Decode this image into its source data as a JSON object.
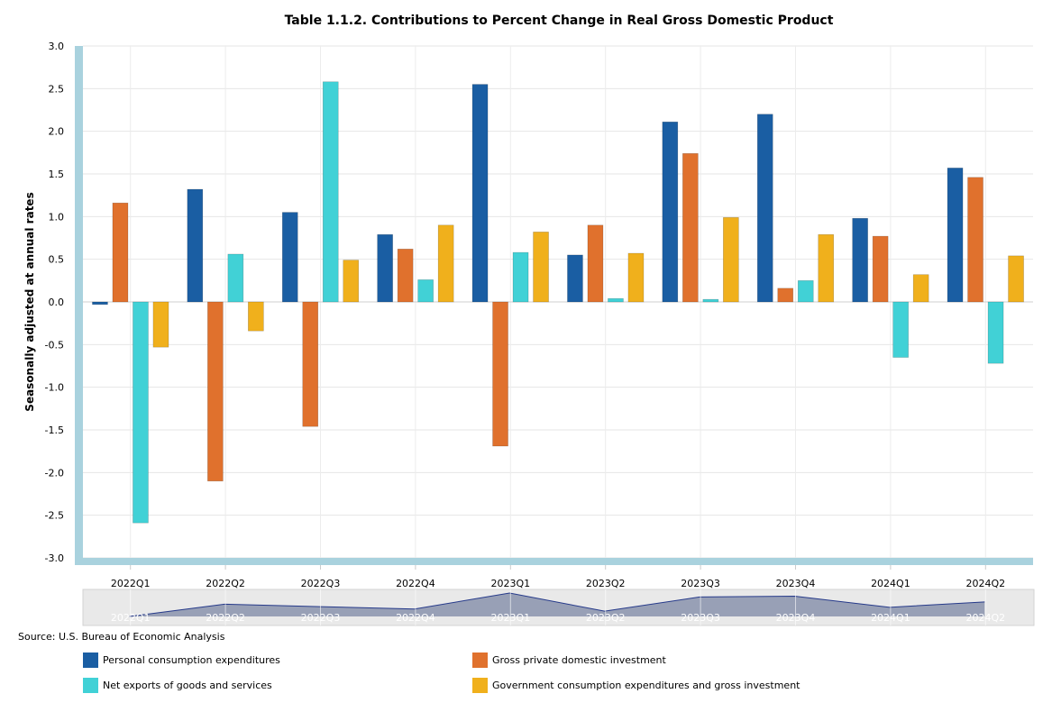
{
  "chart_data": {
    "type": "bar",
    "title": "Table 1.1.2. Contributions to Percent Change in Real Gross Domestic Product",
    "ylabel": "Seasonally adjusted at annual rates",
    "xlabel": "",
    "ylim": [
      -3.0,
      3.0
    ],
    "yticks": [
      "3.0",
      "2.5",
      "2.0",
      "1.5",
      "1.0",
      "0.5",
      "0.0",
      "-0.5",
      "-1.0",
      "-1.5",
      "-2.0",
      "-2.5",
      "-3.0"
    ],
    "ytick_values": [
      3.0,
      2.5,
      2.0,
      1.5,
      1.0,
      0.5,
      0.0,
      -0.5,
      -1.0,
      -1.5,
      -2.0,
      -2.5,
      -3.0
    ],
    "categories": [
      "2022Q1",
      "2022Q2",
      "2022Q3",
      "2022Q4",
      "2023Q1",
      "2023Q2",
      "2023Q3",
      "2023Q4",
      "2024Q1",
      "2024Q2"
    ],
    "series": [
      {
        "name": "Personal consumption expenditures",
        "color": "#1a5ea3",
        "values": [
          -0.03,
          1.32,
          1.05,
          0.79,
          2.55,
          0.55,
          2.11,
          2.2,
          0.98,
          1.57
        ]
      },
      {
        "name": "Gross private domestic investment",
        "color": "#e0712d",
        "values": [
          1.16,
          -2.1,
          -1.46,
          0.62,
          -1.69,
          0.9,
          1.74,
          0.16,
          0.77,
          1.46
        ]
      },
      {
        "name": "Net exports of goods and services",
        "color": "#41d1d6",
        "values": [
          -2.59,
          0.56,
          2.58,
          0.26,
          0.58,
          0.04,
          0.03,
          0.25,
          -0.65,
          -0.72
        ]
      },
      {
        "name": "Government consumption expenditures and gross investment",
        "color": "#f0b01c",
        "values": [
          -0.53,
          -0.34,
          0.49,
          0.9,
          0.82,
          0.57,
          0.99,
          0.79,
          0.32,
          0.54
        ]
      }
    ],
    "navigator_labels": [
      "2022Q1",
      "2022Q2",
      "2022Q3",
      "2022Q4",
      "2023Q1",
      "2023Q2",
      "2023Q3",
      "2023Q4",
      "2024Q1",
      "2024Q2"
    ],
    "legend_position": "bottom"
  },
  "source": "Source: U.S. Bureau of Economic Analysis",
  "legend": [
    {
      "label": "Personal consumption expenditures",
      "color": "#1a5ea3"
    },
    {
      "label": "Gross private domestic investment",
      "color": "#e0712d"
    },
    {
      "label": "Net exports of goods and services",
      "color": "#41d1d6"
    },
    {
      "label": "Government consumption expenditures and gross investment",
      "color": "#f0b01c"
    }
  ]
}
